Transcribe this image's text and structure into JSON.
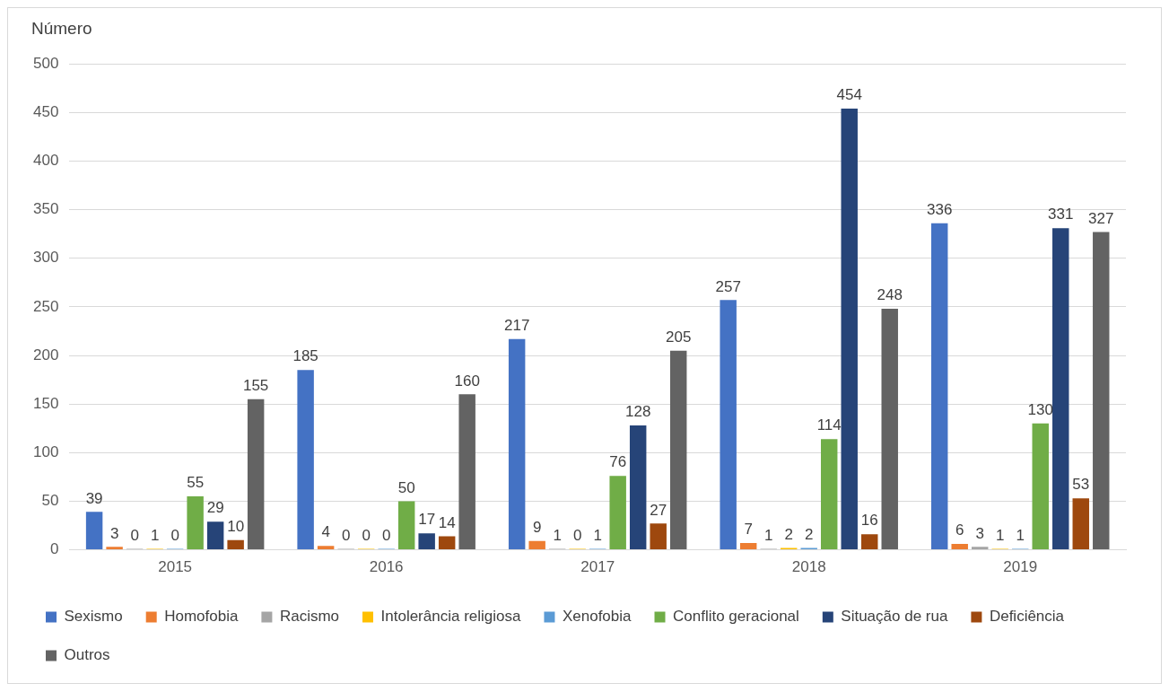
{
  "chart_data": {
    "type": "bar",
    "ylabel": "Número",
    "categories": [
      "2015",
      "2016",
      "2017",
      "2018",
      "2019"
    ],
    "series": [
      {
        "name": "Sexismo",
        "color": "#4472c4",
        "values": [
          39,
          185,
          217,
          257,
          336
        ]
      },
      {
        "name": "Homofobia",
        "color": "#ed7d31",
        "values": [
          3,
          4,
          9,
          7,
          6
        ]
      },
      {
        "name": "Racismo",
        "color": "#a5a5a5",
        "values": [
          0,
          0,
          1,
          1,
          3
        ]
      },
      {
        "name": "Intolerância religiosa",
        "color": "#ffc000",
        "values": [
          1,
          0,
          0,
          2,
          1
        ]
      },
      {
        "name": "Xenofobia",
        "color": "#5b9bd5",
        "values": [
          0,
          0,
          1,
          2,
          1
        ]
      },
      {
        "name": "Conflito geracional",
        "color": "#70ad47",
        "values": [
          55,
          50,
          76,
          114,
          130
        ]
      },
      {
        "name": "Situação de rua",
        "color": "#264478",
        "values": [
          29,
          17,
          128,
          454,
          331
        ]
      },
      {
        "name": "Deficiência",
        "color": "#9e480e",
        "values": [
          10,
          14,
          27,
          16,
          53
        ]
      },
      {
        "name": "Outros",
        "color": "#636363",
        "values": [
          155,
          160,
          205,
          248,
          327
        ]
      }
    ],
    "ylim": [
      0,
      500
    ],
    "yticks": [
      0,
      50,
      100,
      150,
      200,
      250,
      300,
      350,
      400,
      450,
      500
    ],
    "grid": "y",
    "legend": "bottom",
    "data_labels": true
  }
}
